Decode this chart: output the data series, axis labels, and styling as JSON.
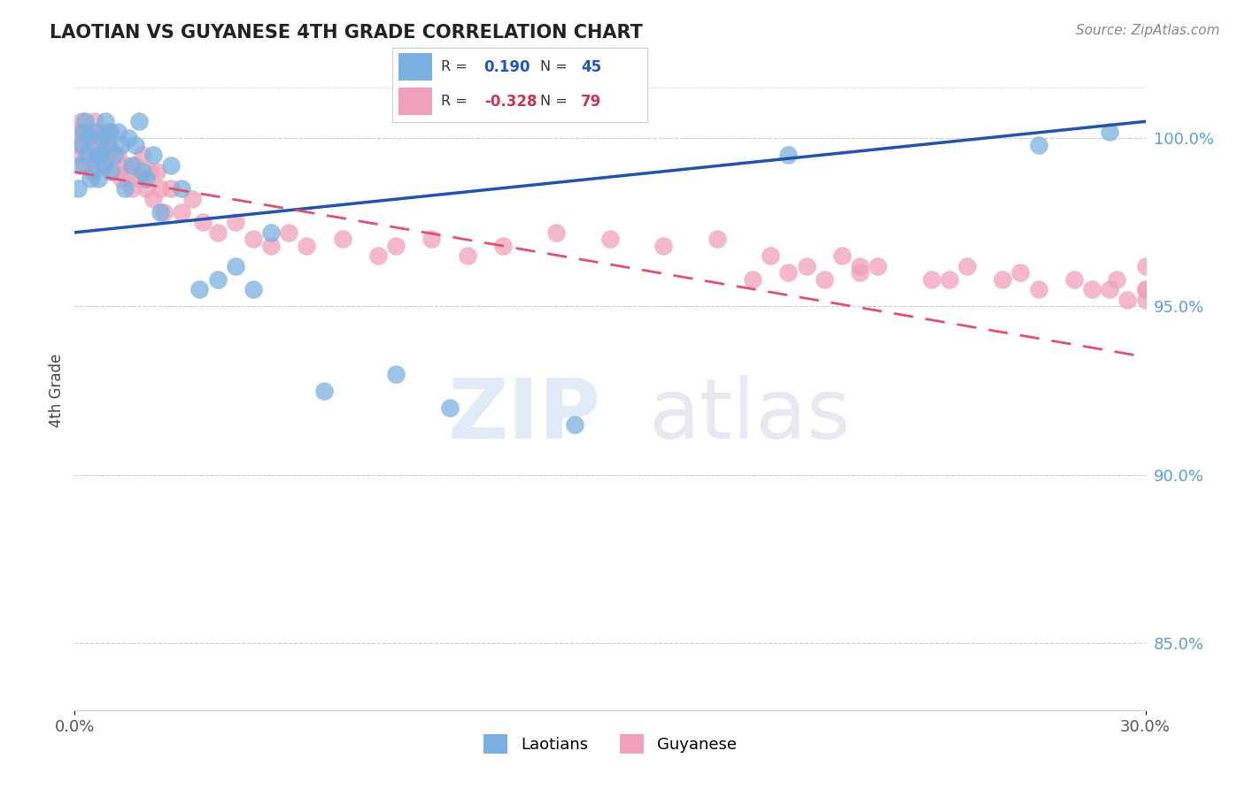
{
  "title": "LAOTIAN VS GUYANESE 4TH GRADE CORRELATION CHART",
  "source_text": "Source: ZipAtlas.com",
  "ylabel": "4th Grade",
  "xlim": [
    0.0,
    30.0
  ],
  "ylim": [
    83.0,
    102.0
  ],
  "xticklabels": [
    "0.0%",
    "30.0%"
  ],
  "yticklabels_right": [
    "85.0%",
    "90.0%",
    "95.0%",
    "100.0%"
  ],
  "yticks_right": [
    85.0,
    90.0,
    95.0,
    100.0
  ],
  "color_laotian": "#7ab0e0",
  "color_guyanese": "#f0a0b8",
  "color_line_laotian": "#2255aa",
  "color_line_guyanese": "#e05070",
  "laotian_trend_x0": 0.0,
  "laotian_trend_y0": 97.2,
  "laotian_trend_x1": 30.0,
  "laotian_trend_y1": 100.5,
  "guyanese_trend_x0": 0.0,
  "guyanese_trend_y0": 99.0,
  "guyanese_trend_x1": 30.0,
  "guyanese_trend_y1": 93.5,
  "laotian_x": [
    0.1,
    0.15,
    0.2,
    0.25,
    0.3,
    0.35,
    0.4,
    0.45,
    0.5,
    0.55,
    0.6,
    0.65,
    0.7,
    0.75,
    0.8,
    0.85,
    0.9,
    0.95,
    1.0,
    1.1,
    1.2,
    1.3,
    1.4,
    1.5,
    1.6,
    1.7,
    1.8,
    1.9,
    2.0,
    2.2,
    2.4,
    2.7,
    3.0,
    3.5,
    4.0,
    4.5,
    5.0,
    5.5,
    7.0,
    9.0,
    10.5,
    14.0,
    20.0,
    27.0,
    29.0
  ],
  "laotian_y": [
    98.5,
    99.2,
    99.8,
    100.2,
    100.5,
    99.5,
    100.0,
    98.8,
    99.0,
    100.2,
    99.5,
    98.8,
    99.5,
    100.0,
    99.2,
    100.5,
    99.8,
    100.2,
    99.0,
    99.5,
    100.2,
    99.8,
    98.5,
    100.0,
    99.2,
    99.8,
    100.5,
    99.0,
    98.8,
    99.5,
    97.8,
    99.2,
    98.5,
    95.5,
    95.8,
    96.2,
    95.5,
    97.2,
    92.5,
    93.0,
    92.0,
    91.5,
    99.5,
    99.8,
    100.2
  ],
  "guyanese_x": [
    0.05,
    0.1,
    0.15,
    0.2,
    0.25,
    0.3,
    0.35,
    0.4,
    0.45,
    0.5,
    0.55,
    0.6,
    0.65,
    0.7,
    0.75,
    0.8,
    0.85,
    0.9,
    0.95,
    1.0,
    1.1,
    1.2,
    1.3,
    1.4,
    1.5,
    1.6,
    1.7,
    1.8,
    1.9,
    2.0,
    2.1,
    2.2,
    2.3,
    2.4,
    2.5,
    2.7,
    3.0,
    3.3,
    3.6,
    4.0,
    4.5,
    5.0,
    5.5,
    6.0,
    6.5,
    7.5,
    8.5,
    9.0,
    10.0,
    11.0,
    12.0,
    13.5,
    15.0,
    16.5,
    18.0,
    19.5,
    20.5,
    21.5,
    22.5,
    24.0,
    25.0,
    26.0,
    27.0,
    28.0,
    29.0,
    29.5,
    30.0,
    22.0,
    24.5,
    26.5,
    28.5,
    29.2,
    30.0,
    19.0,
    20.0,
    21.0,
    22.0,
    30.0,
    30.0
  ],
  "guyanese_y": [
    99.5,
    100.2,
    99.8,
    100.5,
    100.0,
    99.2,
    100.2,
    99.5,
    100.0,
    99.8,
    100.5,
    99.2,
    99.5,
    100.0,
    99.8,
    99.2,
    100.0,
    99.5,
    99.8,
    100.2,
    99.0,
    99.5,
    98.8,
    99.2,
    99.0,
    98.5,
    99.2,
    98.8,
    99.5,
    98.5,
    99.0,
    98.2,
    99.0,
    98.5,
    97.8,
    98.5,
    97.8,
    98.2,
    97.5,
    97.2,
    97.5,
    97.0,
    96.8,
    97.2,
    96.8,
    97.0,
    96.5,
    96.8,
    97.0,
    96.5,
    96.8,
    97.2,
    97.0,
    96.8,
    97.0,
    96.5,
    96.2,
    96.5,
    96.2,
    95.8,
    96.2,
    95.8,
    95.5,
    95.8,
    95.5,
    95.2,
    95.5,
    96.0,
    95.8,
    96.0,
    95.5,
    95.8,
    96.2,
    95.8,
    96.0,
    95.8,
    96.2,
    95.2,
    95.5
  ]
}
